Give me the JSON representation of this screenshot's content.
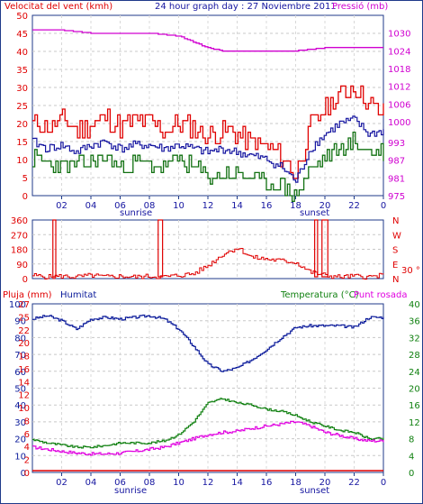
{
  "header": {
    "left_title": "Velocitat del vent (kmh)",
    "center_title": "24 hour graph day : 27 Noviembre 2011",
    "right_title": "Pressió (mb)"
  },
  "labels": {
    "sunrise": "sunrise",
    "sunset": "sunset",
    "dir_letters": [
      "N",
      "W",
      "S",
      "E",
      "N"
    ],
    "dir_unit": "30 °",
    "rain_title": "Pluja (mm)",
    "hum_title": "Humitat",
    "temp_title": "Temperatura (°C)",
    "dew_title": "Punt rosada"
  },
  "colors": {
    "frame": "#1f3a8a",
    "wind_gust": "#e00000",
    "wind_avg": "#1515a0",
    "wind_green": "#107010",
    "pressure": "#d000d0",
    "humidity": "#0a1a9a",
    "temperature": "#108010",
    "dew": "#e000e0",
    "rain": "#e00000"
  },
  "chart_data": [
    {
      "type": "line",
      "title": "24 hour graph day : 27 Noviembre 2011",
      "ylabel": "Velocitat del vent (kmh)",
      "ylabel_right": "Pressió (mb)",
      "x_ticks": [
        "02",
        "04",
        "06",
        "08",
        "10",
        "12",
        "14",
        "16",
        "18",
        "20",
        "22",
        "0"
      ],
      "y_ticks": [
        "0",
        "5",
        "10",
        "15",
        "20",
        "25",
        "30",
        "35",
        "40",
        "45",
        "50"
      ],
      "y_ticks_right": [
        "975",
        "981",
        "987",
        "993",
        "1000",
        "1006",
        "1012",
        "1018",
        "1024",
        "1030"
      ],
      "ylim": [
        0,
        50
      ],
      "ylim_right": [
        975,
        1036
      ],
      "series": [
        {
          "name": "Velocitat del vent (kmh)",
          "role": "gust",
          "x": [
            0,
            1,
            2,
            3,
            4,
            5,
            6,
            7,
            8,
            9,
            10,
            11,
            12,
            13,
            14,
            15,
            16,
            17,
            18,
            19,
            20,
            21,
            22,
            23,
            24
          ],
          "values": [
            20,
            19,
            21,
            18,
            20,
            22,
            19,
            21,
            20,
            18,
            20,
            19,
            17,
            18,
            17,
            15,
            13,
            11,
            6,
            19,
            24,
            28,
            30,
            25,
            23
          ]
        },
        {
          "role": "avg",
          "x": [
            0,
            1,
            2,
            3,
            4,
            5,
            6,
            7,
            8,
            9,
            10,
            11,
            12,
            13,
            14,
            15,
            16,
            17,
            18,
            19,
            20,
            21,
            22,
            23,
            24
          ],
          "values": [
            15,
            13,
            14,
            12,
            14,
            15,
            13,
            14,
            14,
            13,
            14,
            13,
            12,
            13,
            12,
            11,
            10,
            8,
            4,
            13,
            17,
            20,
            21,
            17,
            18
          ]
        },
        {
          "role": "low",
          "x": [
            0,
            1,
            2,
            3,
            4,
            5,
            6,
            7,
            8,
            9,
            10,
            11,
            12,
            13,
            14,
            15,
            16,
            17,
            18,
            19,
            20,
            21,
            22,
            23,
            24
          ],
          "values": [
            10,
            9,
            8,
            8,
            9,
            11,
            8,
            9,
            9,
            8,
            10,
            8,
            5,
            6,
            6,
            5,
            3,
            3,
            0,
            7,
            11,
            13,
            15,
            12,
            12
          ]
        },
        {
          "name": "Pressió (mb)",
          "role": "pressure",
          "x": [
            0,
            2,
            4,
            6,
            8,
            10,
            11,
            12,
            13,
            14,
            16,
            18,
            20,
            22,
            24
          ],
          "values": [
            1031,
            1031,
            1030,
            1030,
            1030,
            1029,
            1027,
            1025,
            1024,
            1024,
            1024,
            1024,
            1025,
            1025,
            1025
          ]
        }
      ]
    },
    {
      "type": "line",
      "ylabel": "Wind direction",
      "y_ticks": [
        "0",
        "90",
        "180",
        "270",
        "360"
      ],
      "ylim": [
        0,
        360
      ],
      "x": [
        0,
        1,
        2,
        3,
        4,
        5,
        6,
        7,
        8,
        9,
        10,
        11,
        12,
        13,
        14,
        15,
        16,
        17,
        18,
        19,
        20,
        21,
        22,
        23,
        24
      ],
      "values": [
        20,
        10,
        15,
        10,
        20,
        10,
        15,
        10,
        15,
        10,
        20,
        30,
        80,
        150,
        190,
        130,
        120,
        110,
        100,
        40,
        20,
        10,
        15,
        10,
        20
      ]
    },
    {
      "type": "line",
      "ylabel": "Pluja (mm)",
      "y_ticks_left_rain": [
        "0",
        "2",
        "4",
        "6",
        "8",
        "10",
        "12",
        "14",
        "16",
        "18",
        "20",
        "22",
        "25",
        "27"
      ],
      "y_ticks_left_hum": [
        "0",
        "10",
        "20",
        "30",
        "40",
        "50",
        "60",
        "70",
        "80",
        "90",
        "100"
      ],
      "y_ticks_right": [
        "0",
        "4",
        "8",
        "12",
        "16",
        "20",
        "24",
        "28",
        "32",
        "36",
        "40"
      ],
      "ylim_hum": [
        0,
        100
      ],
      "ylim_temp": [
        0,
        40
      ],
      "series": [
        {
          "name": "Humitat",
          "x": [
            0,
            1,
            2,
            3,
            4,
            5,
            6,
            7,
            8,
            9,
            10,
            11,
            12,
            13,
            14,
            15,
            16,
            17,
            18,
            19,
            20,
            21,
            22,
            23,
            24
          ],
          "values": [
            91,
            93,
            90,
            85,
            91,
            92,
            91,
            92,
            93,
            91,
            85,
            75,
            64,
            60,
            62,
            67,
            73,
            80,
            86,
            87,
            87,
            87,
            86,
            92,
            92
          ]
        },
        {
          "name": "Temperatura (°C)",
          "x": [
            0,
            1,
            2,
            3,
            4,
            5,
            6,
            7,
            8,
            9,
            10,
            11,
            12,
            13,
            14,
            15,
            16,
            17,
            18,
            19,
            20,
            21,
            22,
            23,
            24
          ],
          "values": [
            7.8,
            7,
            6.5,
            6,
            6,
            6.4,
            7,
            7,
            7,
            7.5,
            9,
            12,
            16.5,
            17.5,
            16.5,
            16,
            15,
            14.5,
            13.5,
            12,
            11,
            10,
            9.5,
            8,
            8
          ]
        },
        {
          "name": "Punt rosada",
          "x": [
            0,
            1,
            2,
            3,
            4,
            5,
            6,
            7,
            8,
            9,
            10,
            11,
            12,
            13,
            14,
            15,
            16,
            17,
            18,
            19,
            20,
            21,
            22,
            23,
            24
          ],
          "values": [
            6,
            5.5,
            5,
            4.6,
            4.4,
            4.4,
            4.6,
            5,
            5.5,
            6,
            7,
            8,
            9,
            9.5,
            9.8,
            10.5,
            11,
            11.5,
            12,
            11,
            9.5,
            8.8,
            8,
            7.5,
            7.5
          ]
        },
        {
          "name": "Pluja (mm)",
          "x": [
            0,
            24
          ],
          "values": [
            0,
            0
          ]
        }
      ]
    }
  ]
}
